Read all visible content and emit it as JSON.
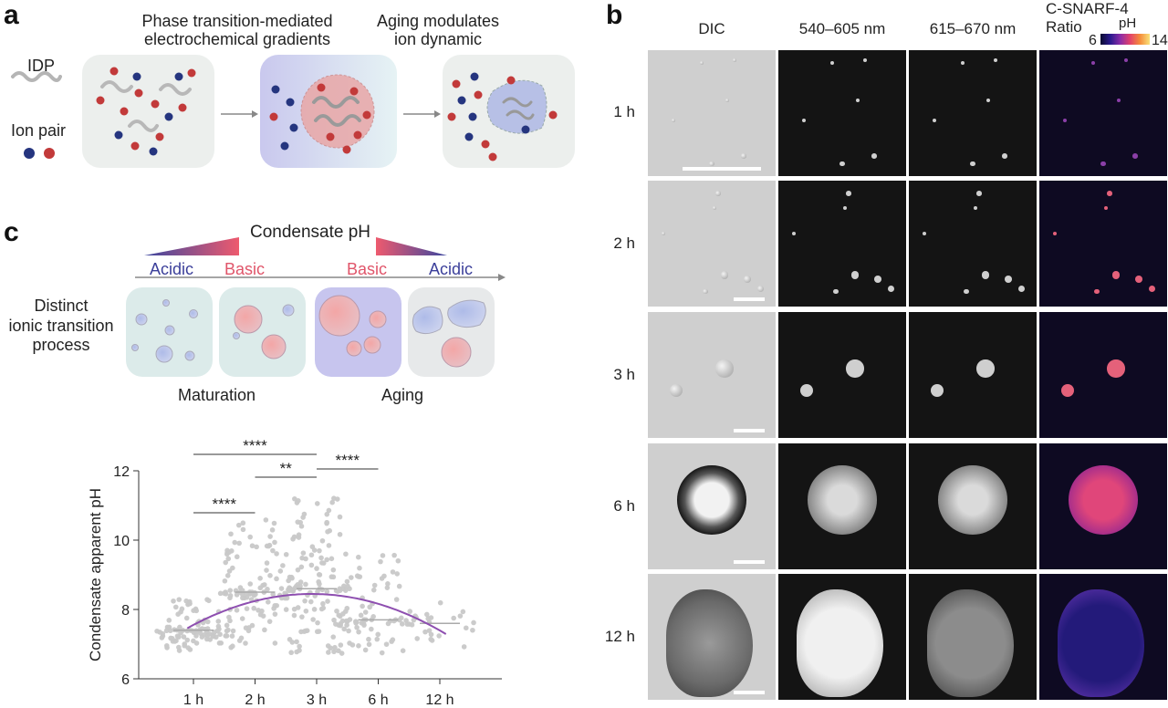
{
  "panels": {
    "a": "a",
    "b": "b",
    "c": "c"
  },
  "panel_a": {
    "legend_idp": "IDP",
    "legend_ion_pair": "Ion pair",
    "header_1_line1": "Phase transition-mediated",
    "header_1_line2": "electrochemical gradients",
    "header_2_line1": "Aging modulates",
    "header_2_line2": "ion dynamic"
  },
  "panel_b": {
    "columns": [
      "DIC",
      "540–605 nm",
      "615–670 nm"
    ],
    "ratio_label_line1": "C-SNARF-4",
    "ratio_label_line2": "Ratio",
    "ph_label": "pH",
    "ph_min": "6",
    "ph_max": "14",
    "rows": [
      "1 h",
      "2 h",
      "3 h",
      "6 h",
      "12 h"
    ]
  },
  "panel_c_schematic": {
    "title": "Condensate pH",
    "acidic_left": "Acidic",
    "basic_left": "Basic",
    "basic_right": "Basic",
    "acidic_right": "Acidic",
    "side_line1": "Distinct",
    "side_line2": "ionic transition",
    "side_line3": "process",
    "maturation": "Maturation",
    "aging": "Aging"
  },
  "colors": {
    "acidic": "#3b3f9a",
    "basic": "#e0556a",
    "fit_curve": "#8e4fb0",
    "points": "#c8c8c8"
  },
  "chart_data": {
    "type": "scatter",
    "ylabel": "Condensate apparent pH",
    "xlabel": "",
    "categories": [
      "1 h",
      "2 h",
      "3 h",
      "6 h",
      "12 h"
    ],
    "y_ticks": [
      "6",
      "8",
      "10",
      "12"
    ],
    "ylim": [
      6,
      12
    ],
    "medians": [
      7.4,
      8.5,
      8.6,
      7.7,
      7.6
    ],
    "ranges": [
      [
        6.8,
        8.3
      ],
      [
        6.9,
        10.6
      ],
      [
        6.7,
        11.5
      ],
      [
        6.7,
        9.6
      ],
      [
        6.6,
        8.2
      ]
    ],
    "point_counts": [
      95,
      110,
      140,
      70,
      22
    ],
    "fit": "quadratic",
    "significance": [
      {
        "from": "1 h",
        "to": "2 h",
        "label": "****"
      },
      {
        "from": "1 h",
        "to": "3 h",
        "label": "****"
      },
      {
        "from": "2 h",
        "to": "3 h",
        "label": "**"
      },
      {
        "from": "3 h",
        "to": "6 h",
        "label": "****"
      }
    ]
  }
}
